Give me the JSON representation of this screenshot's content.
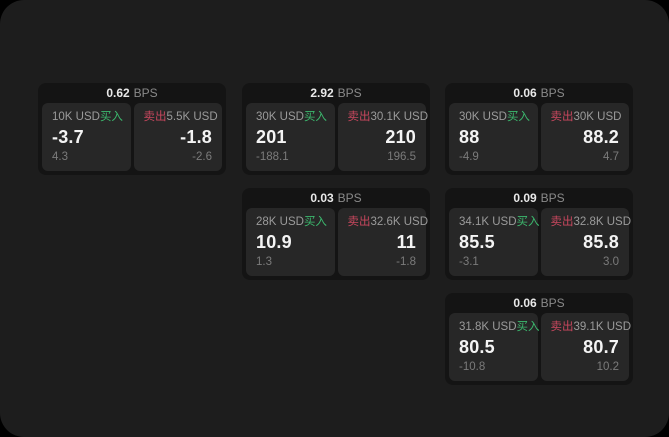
{
  "labels": {
    "bps_unit": "BPS",
    "buy": "买入",
    "sell": "卖出"
  },
  "colors": {
    "screen_bg": "#1d1d1d",
    "card_bg": "#141414",
    "panel_bg": "#272727",
    "buy_green": "#3cb96e",
    "sell_red": "#c8475e",
    "value_white": "#f4f4f4",
    "label_gray": "#9b9b9b"
  },
  "cards": [
    {
      "bps": "0.62",
      "buy": {
        "amount": "10K USD",
        "value": "-3.7",
        "sub": "4.3"
      },
      "sell": {
        "amount": "5.5K USD",
        "value": "-1.8",
        "sub": "-2.6"
      }
    },
    {
      "bps": "2.92",
      "buy": {
        "amount": "30K USD",
        "value": "201",
        "sub": "-188.1"
      },
      "sell": {
        "amount": "30.1K USD",
        "value": "210",
        "sub": "196.5"
      }
    },
    {
      "bps": "0.06",
      "buy": {
        "amount": "30K USD",
        "value": "88",
        "sub": "-4.9"
      },
      "sell": {
        "amount": "30K USD",
        "value": "88.2",
        "sub": "4.7"
      }
    },
    {
      "bps": "0.03",
      "buy": {
        "amount": "28K USD",
        "value": "10.9",
        "sub": "1.3"
      },
      "sell": {
        "amount": "32.6K USD",
        "value": "11",
        "sub": "-1.8"
      }
    },
    {
      "bps": "0.09",
      "buy": {
        "amount": "34.1K USD",
        "value": "85.5",
        "sub": "-3.1"
      },
      "sell": {
        "amount": "32.8K USD",
        "value": "85.8",
        "sub": "3.0"
      }
    },
    {
      "bps": "0.06",
      "buy": {
        "amount": "31.8K USD",
        "value": "80.5",
        "sub": "-10.8"
      },
      "sell": {
        "amount": "39.1K USD",
        "value": "80.7",
        "sub": "10.2"
      }
    }
  ]
}
